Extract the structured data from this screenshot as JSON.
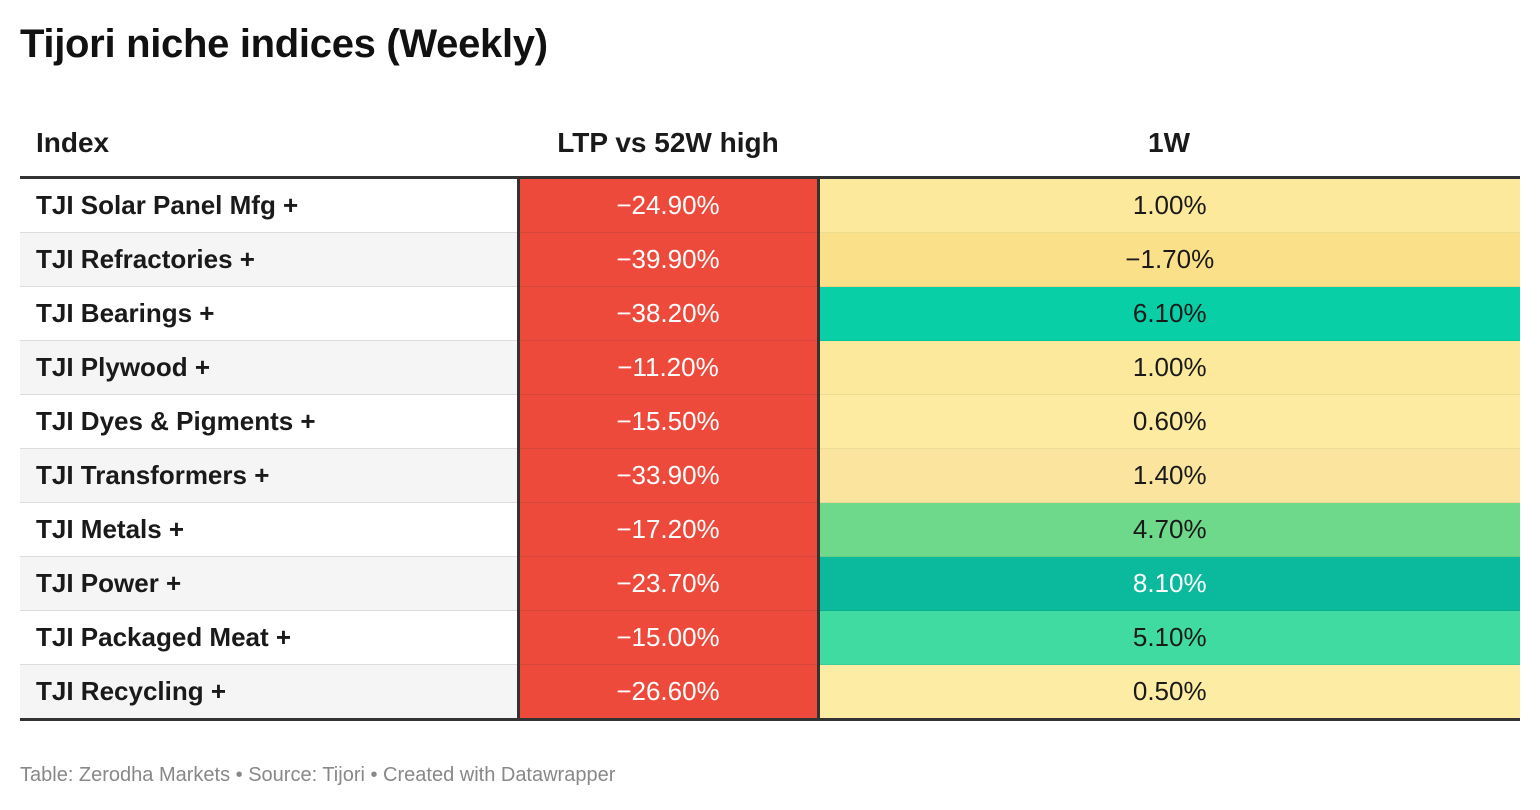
{
  "title": "Tijori niche indices (Weekly)",
  "footer": "Table: Zerodha Markets • Source: Tijori • Created with Datawrapper",
  "chart_data": {
    "type": "table",
    "columns": [
      "Index",
      "LTP vs 52W high",
      "1W"
    ],
    "rows": [
      {
        "index": "TJI Solar Panel Mfg +",
        "ltp": "−24.90%",
        "w": "1.00%",
        "w_bg": "#fde99c",
        "w_fg": "#1a1a1a"
      },
      {
        "index": "TJI Refractories +",
        "ltp": "−39.90%",
        "w": "−1.70%",
        "w_bg": "#fbe08a",
        "w_fg": "#1a1a1a"
      },
      {
        "index": "TJI Bearings +",
        "ltp": "−38.20%",
        "w": "6.10%",
        "w_bg": "#08cfa6",
        "w_fg": "#1a1a1a"
      },
      {
        "index": "TJI Plywood +",
        "ltp": "−11.20%",
        "w": "1.00%",
        "w_bg": "#fde99c",
        "w_fg": "#1a1a1a"
      },
      {
        "index": "TJI Dyes & Pigments +",
        "ltp": "−15.50%",
        "w": "0.60%",
        "w_bg": "#fdeba1",
        "w_fg": "#1a1a1a"
      },
      {
        "index": "TJI Transformers +",
        "ltp": "−33.90%",
        "w": "1.40%",
        "w_bg": "#fbe49e",
        "w_fg": "#1a1a1a"
      },
      {
        "index": "TJI Metals +",
        "ltp": "−17.20%",
        "w": "4.70%",
        "w_bg": "#6ed88b",
        "w_fg": "#1a1a1a"
      },
      {
        "index": "TJI Power +",
        "ltp": "−23.70%",
        "w": "8.10%",
        "w_bg": "#0bba9c",
        "w_fg": "#ffffff"
      },
      {
        "index": "TJI Packaged Meat +",
        "ltp": "−15.00%",
        "w": "5.10%",
        "w_bg": "#40dba0",
        "w_fg": "#1a1a1a"
      },
      {
        "index": "TJI Recycling +",
        "ltp": "−26.60%",
        "w": "0.50%",
        "w_bg": "#fdeca3",
        "w_fg": "#1a1a1a"
      }
    ],
    "ltp_bg": "#ee4a3c"
  }
}
